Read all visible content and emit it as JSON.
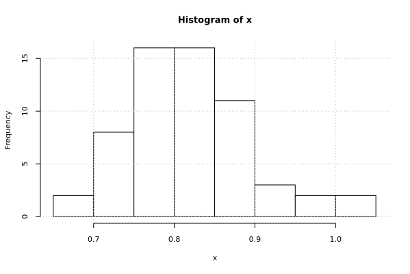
{
  "chart_data": {
    "type": "histogram",
    "title": "Histogram of x",
    "x_label": "x",
    "y_label": "Frequency",
    "bins": [
      0.65,
      0.7,
      0.75,
      0.8,
      0.85,
      0.9,
      0.95,
      1.0,
      1.05
    ],
    "values": [
      2,
      8,
      16,
      16,
      11,
      3,
      2,
      2
    ],
    "color": "#ffffff",
    "xlim": [
      0.634,
      1.066
    ],
    "ylim": [
      -0.64,
      16.64
    ],
    "xticks": [
      0.7,
      0.8,
      0.9,
      {
        "value": 1,
        "label": "1.0"
      }
    ],
    "yticks": [
      0,
      5,
      10,
      15
    ],
    "grid": true
  }
}
